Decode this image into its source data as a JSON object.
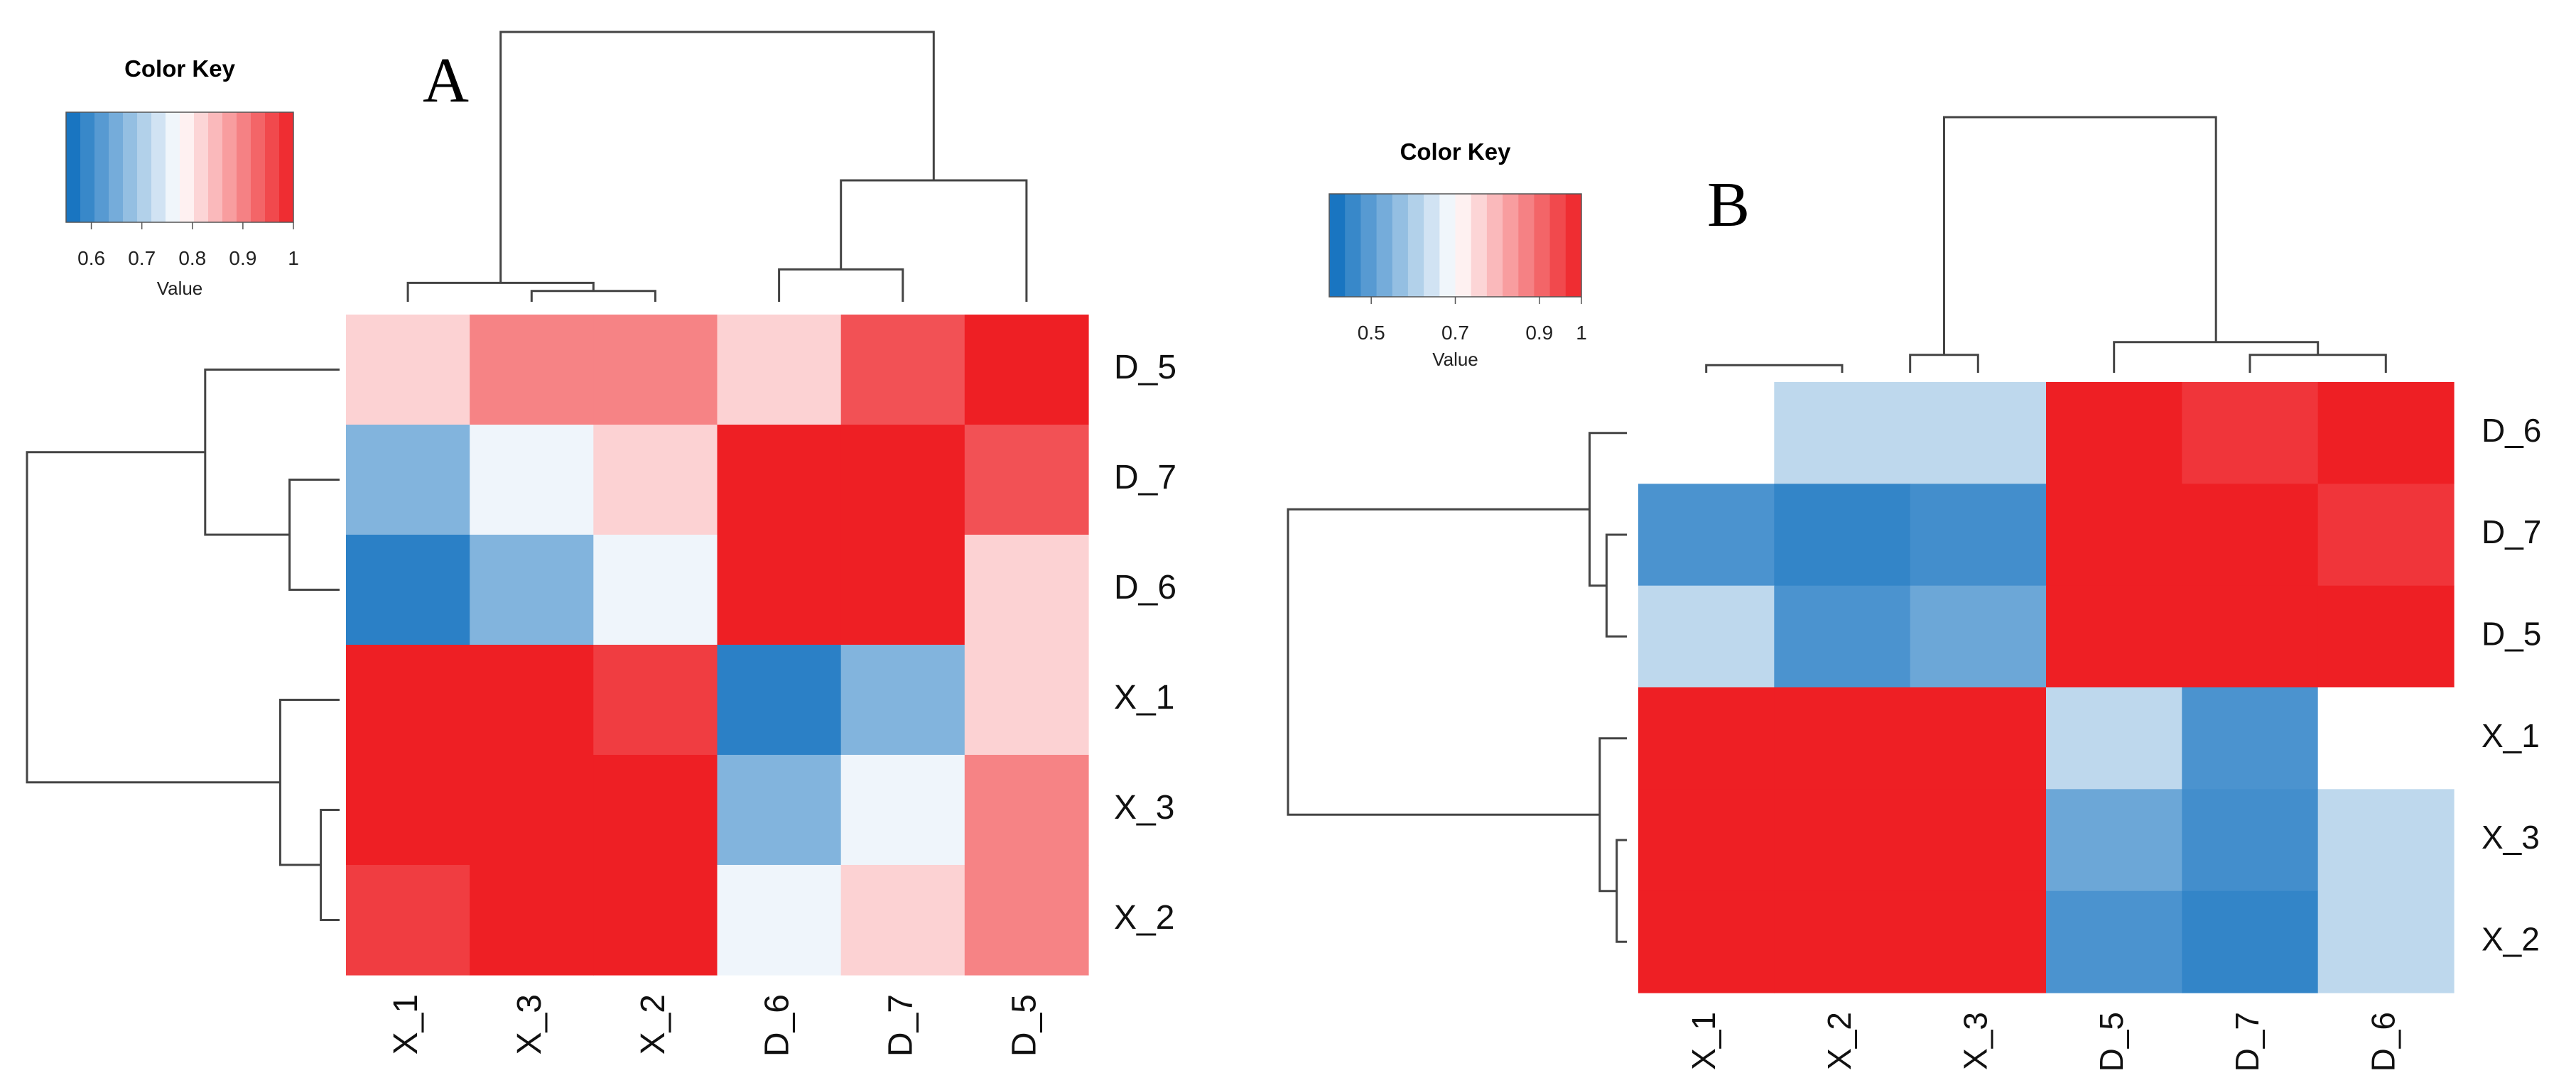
{
  "colors": {
    "low": "#0a6cbd",
    "mid": "#ffffff",
    "high": "#ee1f24",
    "dendrogram": "#444444"
  },
  "chart_data": [
    {
      "type": "heatmap",
      "panel_label": "A",
      "color_key": {
        "title": "Color Key",
        "label": "Value",
        "range": [
          0.55,
          1.0
        ],
        "ticks": [
          "0.6",
          "0.7",
          "0.8",
          "0.9",
          "1"
        ],
        "tick_values": [
          0.6,
          0.7,
          0.8,
          0.9,
          1.0
        ],
        "steps": 16
      },
      "columns": [
        "X_1",
        "X_3",
        "X_2",
        "D_6",
        "D_7",
        "D_5"
      ],
      "rows": [
        "D_5",
        "D_7",
        "D_6",
        "X_1",
        "X_3",
        "X_2"
      ],
      "values": [
        [
          0.82,
          0.9,
          0.9,
          0.82,
          0.95,
          1.0
        ],
        [
          0.66,
          0.76,
          0.82,
          1.0,
          1.0,
          0.95
        ],
        [
          0.58,
          0.66,
          0.76,
          1.0,
          1.0,
          0.82
        ],
        [
          1.0,
          1.0,
          0.97,
          0.58,
          0.66,
          0.82
        ],
        [
          1.0,
          1.0,
          1.0,
          0.66,
          0.76,
          0.9
        ],
        [
          0.97,
          1.0,
          1.0,
          0.76,
          0.82,
          0.9
        ]
      ],
      "col_dendrogram": [
        [
          1,
          2,
          0.04
        ],
        [
          0,
          1.5,
          0.07
        ],
        [
          3,
          4,
          0.12
        ],
        [
          3.5,
          5,
          0.45
        ],
        [
          0.75,
          4.25,
          1.0
        ]
      ],
      "row_dendrogram": [
        [
          1,
          2,
          0.16
        ],
        [
          4,
          5,
          0.06
        ],
        [
          3,
          4.5,
          0.19
        ],
        [
          0,
          1.5,
          0.43
        ],
        [
          3.75,
          0.75,
          1.0
        ]
      ]
    },
    {
      "type": "heatmap",
      "panel_label": "B",
      "color_key": {
        "title": "Color Key",
        "label": "Value",
        "range": [
          0.4,
          1.0
        ],
        "ticks": [
          "0.5",
          "0.7",
          "0.9",
          "1"
        ],
        "tick_values": [
          0.5,
          0.7,
          0.9,
          1.0
        ],
        "steps": 16
      },
      "columns": [
        "X_1",
        "X_2",
        "X_3",
        "D_5",
        "D_7",
        "D_6"
      ],
      "rows": [
        "D_6",
        "D_7",
        "D_5",
        "X_1",
        "X_3",
        "X_2"
      ],
      "values": [
        [
          0.7,
          0.62,
          0.62,
          1.0,
          0.97,
          1.0
        ],
        [
          0.48,
          0.45,
          0.47,
          1.0,
          1.0,
          0.97
        ],
        [
          0.62,
          0.48,
          0.52,
          1.0,
          1.0,
          1.0
        ],
        [
          1.0,
          1.0,
          1.0,
          0.62,
          0.48,
          0.7
        ],
        [
          1.0,
          1.0,
          1.0,
          0.52,
          0.47,
          0.62
        ],
        [
          1.0,
          1.0,
          1.0,
          0.48,
          0.45,
          0.62
        ]
      ],
      "col_dendrogram": [
        [
          0,
          1,
          0.03
        ],
        [
          1.5,
          2,
          0.07
        ],
        [
          4,
          5,
          0.07
        ],
        [
          3,
          4.5,
          0.12
        ],
        [
          1.75,
          3.75,
          1.0
        ]
      ],
      "row_dendrogram": [
        [
          1,
          2,
          0.06
        ],
        [
          0,
          1.5,
          0.11
        ],
        [
          4,
          5,
          0.03
        ],
        [
          3,
          4.5,
          0.08
        ],
        [
          0.75,
          3.75,
          1.0
        ]
      ]
    }
  ]
}
